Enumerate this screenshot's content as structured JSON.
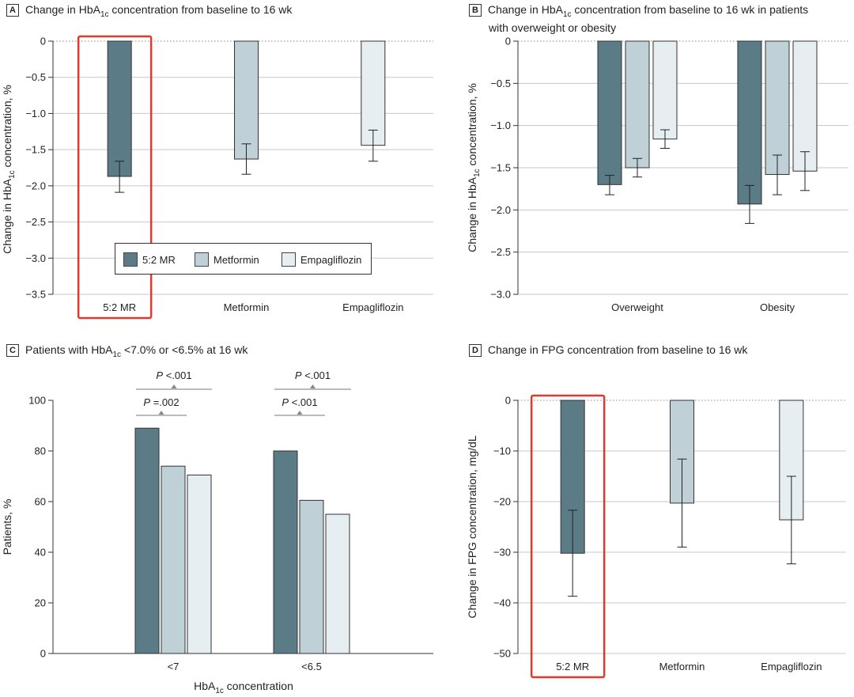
{
  "colors": {
    "mr": "#5b7b87",
    "metformin": "#bfd0d6",
    "empagliflozin": "#e6eef1",
    "highlight": "#e2392d",
    "grid": "#c8c8c8"
  },
  "panel_a": {
    "letter": "A",
    "title_pre": "Change in HbA",
    "title_sub": "1c",
    "title_post": " concentration from baseline to 16 wk",
    "ylabel_pre": "Change in HbA",
    "ylabel_sub": "1c",
    "ylabel_post": " concentration, %",
    "legend": [
      "5:2 MR",
      "Metformin",
      "Empagliflozin"
    ]
  },
  "panel_b": {
    "letter": "B",
    "title_line1_pre": "Change in HbA",
    "title_line1_sub": "1c",
    "title_line1_post": " concentration from baseline to 16 wk in patients",
    "title_line2": "with overweight or obesity",
    "ylabel_pre": "Change in HbA",
    "ylabel_sub": "1c",
    "ylabel_post": " concentration, %"
  },
  "panel_c": {
    "letter": "C",
    "title_pre": "Patients with HbA",
    "title_sub": "1c",
    "title_post": " <7.0% or <6.5% at 16 wk",
    "ylabel": "Patients, %",
    "xlabel_pre": "HbA",
    "xlabel_sub": "1c",
    "xlabel_post": " concentration"
  },
  "panel_d": {
    "letter": "D",
    "title": "Change in FPG concentration from baseline to 16 wk",
    "ylabel": "Change in FPG concentration, mg/dL"
  },
  "chart_data": [
    {
      "id": "A",
      "type": "bar",
      "categories": [
        "5:2 MR",
        "Metformin",
        "Empagliflozin"
      ],
      "values": [
        -1.87,
        -1.63,
        -1.44
      ],
      "error_low": [
        -2.09,
        -1.84,
        -1.66
      ],
      "error_high": [
        -1.66,
        -1.42,
        -1.23
      ],
      "ylim": [
        -3.5,
        0
      ],
      "yticks": [
        0,
        -0.5,
        -1.0,
        -1.5,
        -2.0,
        -2.5,
        -3.0,
        -3.5
      ],
      "ytick_labels": [
        "0",
        "−0.5",
        "−1.0",
        "−1.5",
        "−2.0",
        "−2.5",
        "−3.0",
        "−3.5"
      ],
      "grid": true,
      "highlight": "5:2 MR",
      "legend_position": "bottom-center"
    },
    {
      "id": "B",
      "type": "bar",
      "categories": [
        "Overweight",
        "Obesity"
      ],
      "series": [
        {
          "name": "5:2 MR",
          "values": [
            -1.7,
            -1.93
          ],
          "error_low": [
            -1.82,
            -2.16
          ],
          "error_high": [
            -1.59,
            -1.71
          ]
        },
        {
          "name": "Metformin",
          "values": [
            -1.5,
            -1.58
          ],
          "error_low": [
            -1.61,
            -1.82
          ],
          "error_high": [
            -1.39,
            -1.35
          ]
        },
        {
          "name": "Empagliflozin",
          "values": [
            -1.16,
            -1.54
          ],
          "error_low": [
            -1.27,
            -1.77
          ],
          "error_high": [
            -1.05,
            -1.31
          ]
        }
      ],
      "ylim": [
        -3.0,
        0
      ],
      "yticks": [
        0,
        -0.5,
        -1.0,
        -1.5,
        -2.0,
        -2.5,
        -3.0
      ],
      "ytick_labels": [
        "0",
        "−0.5",
        "−1.0",
        "−1.5",
        "−2.0",
        "−2.5",
        "−3.0"
      ],
      "grid": true
    },
    {
      "id": "C",
      "type": "bar",
      "categories": [
        "<7",
        "<6.5"
      ],
      "series": [
        {
          "name": "5:2 MR",
          "values": [
            89,
            80
          ]
        },
        {
          "name": "Metformin",
          "values": [
            74,
            60.5
          ]
        },
        {
          "name": "Empagliflozin",
          "values": [
            70.5,
            55
          ]
        }
      ],
      "ylim": [
        0,
        100
      ],
      "yticks": [
        0,
        20,
        40,
        60,
        80,
        100
      ],
      "ytick_labels": [
        "0",
        "20",
        "40",
        "60",
        "80",
        "100"
      ],
      "grid": false,
      "annotations": [
        {
          "group": "<7",
          "label_p": "P",
          "label_rest": " <.001",
          "from": "5:2 MR",
          "to": "Empagliflozin"
        },
        {
          "group": "<7",
          "label_p": "P",
          "label_rest": " =.002",
          "from": "5:2 MR",
          "to": "Metformin"
        },
        {
          "group": "<6.5",
          "label_p": "P",
          "label_rest": " <.001",
          "from": "5:2 MR",
          "to": "Empagliflozin"
        },
        {
          "group": "<6.5",
          "label_p": "P",
          "label_rest": " <.001",
          "from": "5:2 MR",
          "to": "Metformin"
        }
      ]
    },
    {
      "id": "D",
      "type": "bar",
      "categories": [
        "5:2 MR",
        "Metformin",
        "Empagliflozin"
      ],
      "values": [
        -30.2,
        -20.3,
        -23.6
      ],
      "error_low": [
        -38.7,
        -29.0,
        -32.3
      ],
      "error_high": [
        -21.7,
        -11.6,
        -15.0
      ],
      "ylim": [
        -50,
        0
      ],
      "yticks": [
        0,
        -10,
        -20,
        -30,
        -40,
        -50
      ],
      "ytick_labels": [
        "0",
        "−10",
        "−20",
        "−30",
        "−40",
        "−50"
      ],
      "grid": true,
      "highlight": "5:2 MR"
    }
  ]
}
